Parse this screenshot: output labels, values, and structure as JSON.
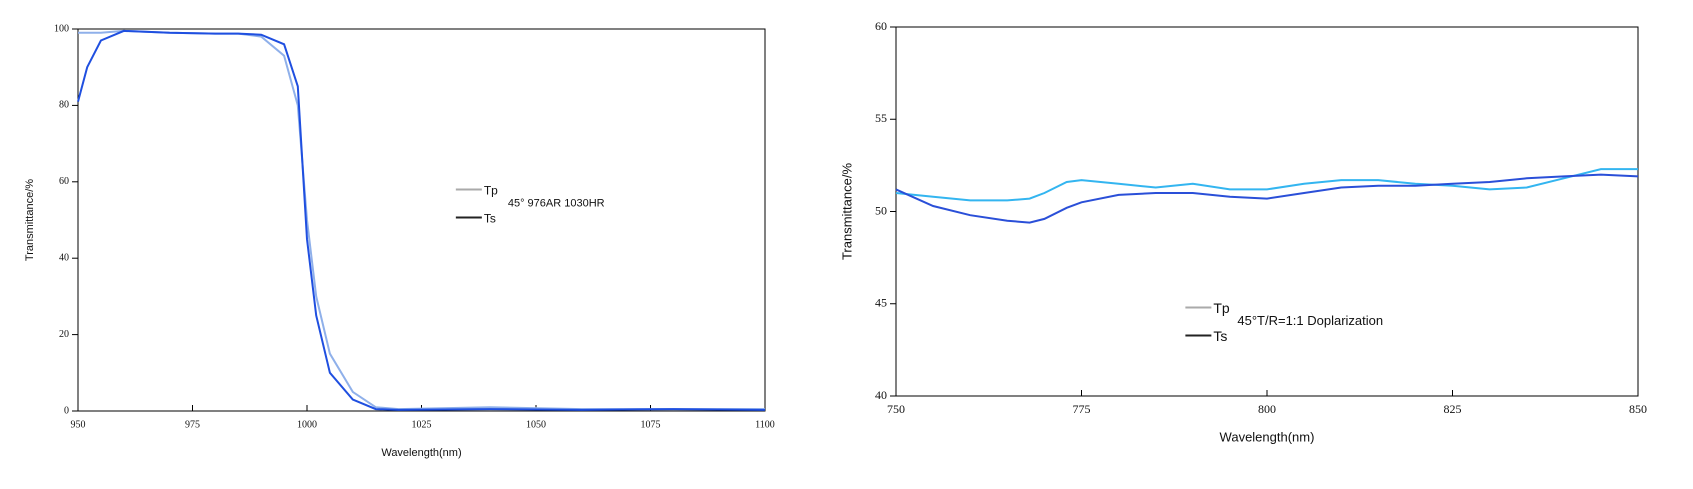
{
  "chart_data": [
    {
      "type": "line",
      "xlabel": "Wavelength(nm)",
      "ylabel": "Transmittance/%",
      "annotation": "45° 976AR 1030HR",
      "x": [
        950,
        952,
        955,
        960,
        970,
        980,
        985,
        990,
        995,
        998,
        1000,
        1002,
        1005,
        1010,
        1015,
        1020,
        1040,
        1060,
        1080,
        1100
      ],
      "series": [
        {
          "name": "Tp",
          "color": "#8fb0ea",
          "legend_color": "#aaaaaa",
          "values": [
            99,
            99,
            99,
            99.5,
            99,
            98.8,
            98.8,
            98,
            93,
            80,
            50,
            30,
            15,
            5,
            1,
            0.5,
            1,
            0.5,
            0.5,
            0.5
          ]
        },
        {
          "name": "Ts",
          "color": "#1f4fe0",
          "legend_color": "#222222",
          "values": [
            81,
            90,
            97,
            99.5,
            99,
            98.8,
            98.8,
            98.5,
            96,
            85,
            45,
            25,
            10,
            3,
            0.5,
            0.3,
            0.5,
            0.3,
            0.5,
            0.3
          ]
        }
      ],
      "xlim": [
        950,
        1100
      ],
      "xticks": [
        950,
        975,
        1000,
        1025,
        1050,
        1075,
        1100
      ],
      "ylim": [
        0,
        100
      ],
      "yticks": [
        0,
        20,
        40,
        60,
        80,
        100
      ]
    },
    {
      "type": "line",
      "xlabel": "Wavelength(nm)",
      "ylabel": "Transmittance/%",
      "annotation": "45°T/R=1:1 Doplarization",
      "x": [
        750,
        755,
        760,
        765,
        768,
        770,
        773,
        775,
        780,
        785,
        790,
        795,
        800,
        805,
        810,
        815,
        820,
        825,
        830,
        835,
        840,
        845,
        850
      ],
      "series": [
        {
          "name": "Tp",
          "color": "#33b5f0",
          "legend_color": "#aaaaaa",
          "values": [
            51,
            50.8,
            50.6,
            50.6,
            50.7,
            51,
            51.6,
            51.7,
            51.5,
            51.3,
            51.5,
            51.2,
            51.2,
            51.5,
            51.7,
            51.7,
            51.5,
            51.4,
            51.2,
            51.3,
            51.8,
            52.3,
            52.3
          ]
        },
        {
          "name": "Ts",
          "color": "#2a4fd8",
          "legend_color": "#222222",
          "values": [
            51.2,
            50.3,
            49.8,
            49.5,
            49.4,
            49.6,
            50.2,
            50.5,
            50.9,
            51,
            51,
            50.8,
            50.7,
            51,
            51.3,
            51.4,
            51.4,
            51.5,
            51.6,
            51.8,
            51.9,
            52,
            51.9
          ]
        }
      ],
      "xlim": [
        750,
        850
      ],
      "xticks": [
        750,
        775,
        800,
        825,
        850
      ],
      "ylim": [
        40,
        60
      ],
      "yticks": [
        40,
        45,
        50,
        55,
        60
      ]
    }
  ]
}
